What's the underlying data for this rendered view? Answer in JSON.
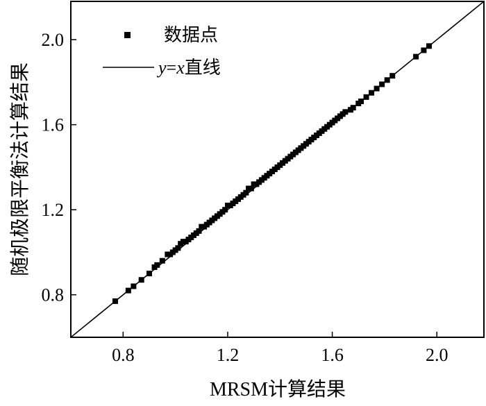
{
  "chart_data": {
    "type": "scatter",
    "xlabel": "MRSM计算结果",
    "ylabel": "随机极限平衡法计算结果",
    "xlim": [
      0.6,
      2.18
    ],
    "ylim": [
      0.6,
      2.18
    ],
    "xticks": [
      "0.8",
      "1.2",
      "1.6",
      "2.0"
    ],
    "yticks": [
      "0.8",
      "1.2",
      "1.6",
      "2.0"
    ],
    "grid": false,
    "legend_position": "top-left",
    "legend": {
      "points_label": "数据点",
      "line_label_var_y": "y",
      "line_label_eq": "=",
      "line_label_var_x": "x",
      "line_label_text": "直线"
    },
    "series": [
      {
        "name": "数据点",
        "kind": "scatter",
        "x": [
          0.77,
          0.82,
          0.84,
          0.87,
          0.9,
          0.92,
          0.93,
          0.95,
          0.97,
          0.98,
          0.99,
          1.0,
          1.01,
          1.02,
          1.03,
          1.04,
          1.05,
          1.06,
          1.07,
          1.08,
          1.09,
          1.1,
          1.11,
          1.12,
          1.13,
          1.14,
          1.15,
          1.16,
          1.17,
          1.18,
          1.19,
          1.2,
          1.21,
          1.22,
          1.23,
          1.24,
          1.25,
          1.26,
          1.27,
          1.28,
          1.29,
          1.3,
          1.31,
          1.32,
          1.33,
          1.34,
          1.35,
          1.36,
          1.37,
          1.38,
          1.39,
          1.4,
          1.41,
          1.42,
          1.43,
          1.44,
          1.45,
          1.46,
          1.47,
          1.48,
          1.49,
          1.5,
          1.51,
          1.52,
          1.53,
          1.54,
          1.55,
          1.56,
          1.57,
          1.58,
          1.59,
          1.6,
          1.61,
          1.62,
          1.63,
          1.64,
          1.65,
          1.67,
          1.68,
          1.7,
          1.71,
          1.73,
          1.75,
          1.77,
          1.79,
          1.81,
          1.83,
          1.92,
          1.95,
          1.97
        ],
        "y": [
          0.77,
          0.82,
          0.84,
          0.87,
          0.9,
          0.93,
          0.94,
          0.96,
          0.99,
          0.99,
          1.0,
          1.01,
          1.02,
          1.04,
          1.05,
          1.05,
          1.06,
          1.07,
          1.08,
          1.09,
          1.1,
          1.12,
          1.12,
          1.13,
          1.14,
          1.15,
          1.16,
          1.17,
          1.18,
          1.19,
          1.2,
          1.22,
          1.22,
          1.23,
          1.24,
          1.25,
          1.26,
          1.27,
          1.28,
          1.3,
          1.3,
          1.32,
          1.32,
          1.33,
          1.34,
          1.35,
          1.36,
          1.37,
          1.38,
          1.39,
          1.4,
          1.41,
          1.42,
          1.43,
          1.44,
          1.45,
          1.46,
          1.47,
          1.48,
          1.49,
          1.5,
          1.51,
          1.52,
          1.53,
          1.54,
          1.55,
          1.56,
          1.57,
          1.58,
          1.59,
          1.6,
          1.61,
          1.62,
          1.63,
          1.64,
          1.65,
          1.66,
          1.67,
          1.68,
          1.7,
          1.71,
          1.73,
          1.75,
          1.77,
          1.79,
          1.81,
          1.83,
          1.92,
          1.95,
          1.97
        ]
      },
      {
        "name": "y=x直线",
        "kind": "line",
        "x": [
          0.6,
          2.18
        ],
        "y": [
          0.6,
          2.18
        ]
      }
    ]
  }
}
